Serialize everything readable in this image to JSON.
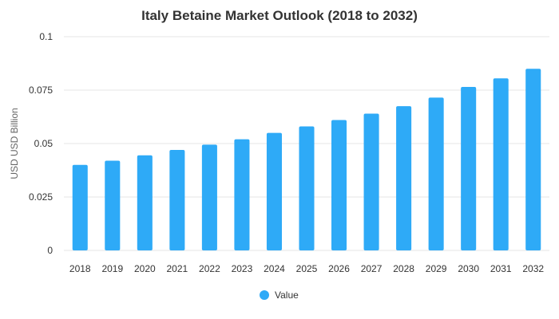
{
  "chart_data": {
    "type": "bar",
    "title": "Italy Betaine Market Outlook (2018 to 2032)",
    "xlabel": "",
    "ylabel": "USD USD Billion",
    "categories": [
      "2018",
      "2019",
      "2020",
      "2021",
      "2022",
      "2023",
      "2024",
      "2025",
      "2026",
      "2027",
      "2028",
      "2029",
      "2030",
      "2031",
      "2032"
    ],
    "series": [
      {
        "name": "Value",
        "color": "#2eaaf7",
        "values": [
          0.04,
          0.042,
          0.0445,
          0.047,
          0.0495,
          0.052,
          0.055,
          0.058,
          0.061,
          0.064,
          0.0675,
          0.0715,
          0.0765,
          0.0805,
          0.085
        ]
      }
    ],
    "ylim": [
      0,
      0.1
    ],
    "yticks": [
      0,
      0.025,
      0.05,
      0.075,
      0.1
    ],
    "ytick_labels": [
      "0",
      "0.025",
      "0.05",
      "0.075",
      "0.1"
    ],
    "grid": true,
    "legend_position": "bottom-center"
  }
}
